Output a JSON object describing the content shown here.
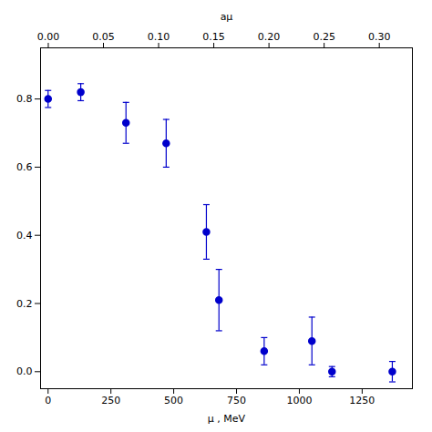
{
  "chart_data": {
    "type": "scatter",
    "xlabel": "μ , MeV",
    "x2label": "aμ",
    "x": [
      0,
      130,
      310,
      470,
      630,
      680,
      860,
      1050,
      1130,
      1370
    ],
    "values": [
      0.8,
      0.82,
      0.73,
      0.67,
      0.41,
      0.21,
      0.06,
      0.09,
      0.0,
      0.0
    ],
    "yerr": [
      0.025,
      0.025,
      0.06,
      0.07,
      0.08,
      0.09,
      0.04,
      0.07,
      0.015,
      0.03
    ],
    "color": "#0000CC",
    "marker": "circle",
    "xlim": [
      -30,
      1450
    ],
    "xticks": [
      0,
      250,
      500,
      750,
      1000,
      1250
    ],
    "ylim": [
      -0.05,
      0.95
    ],
    "yticks": [
      {
        "value": 0.0,
        "label": "0.0"
      },
      0.2,
      0.4,
      0.6,
      0.8
    ],
    "x2lim": [
      -0.007,
      0.33
    ],
    "x2ticks": [
      {
        "value": 0.0,
        "label": "0.00"
      },
      {
        "value": 0.05,
        "label": "0.05"
      },
      {
        "value": 0.1,
        "label": "0.10"
      },
      {
        "value": 0.15,
        "label": "0.15"
      },
      {
        "value": 0.2,
        "label": "0.20"
      },
      {
        "value": 0.25,
        "label": "0.25"
      },
      {
        "value": 0.3,
        "label": "0.30"
      }
    ]
  }
}
